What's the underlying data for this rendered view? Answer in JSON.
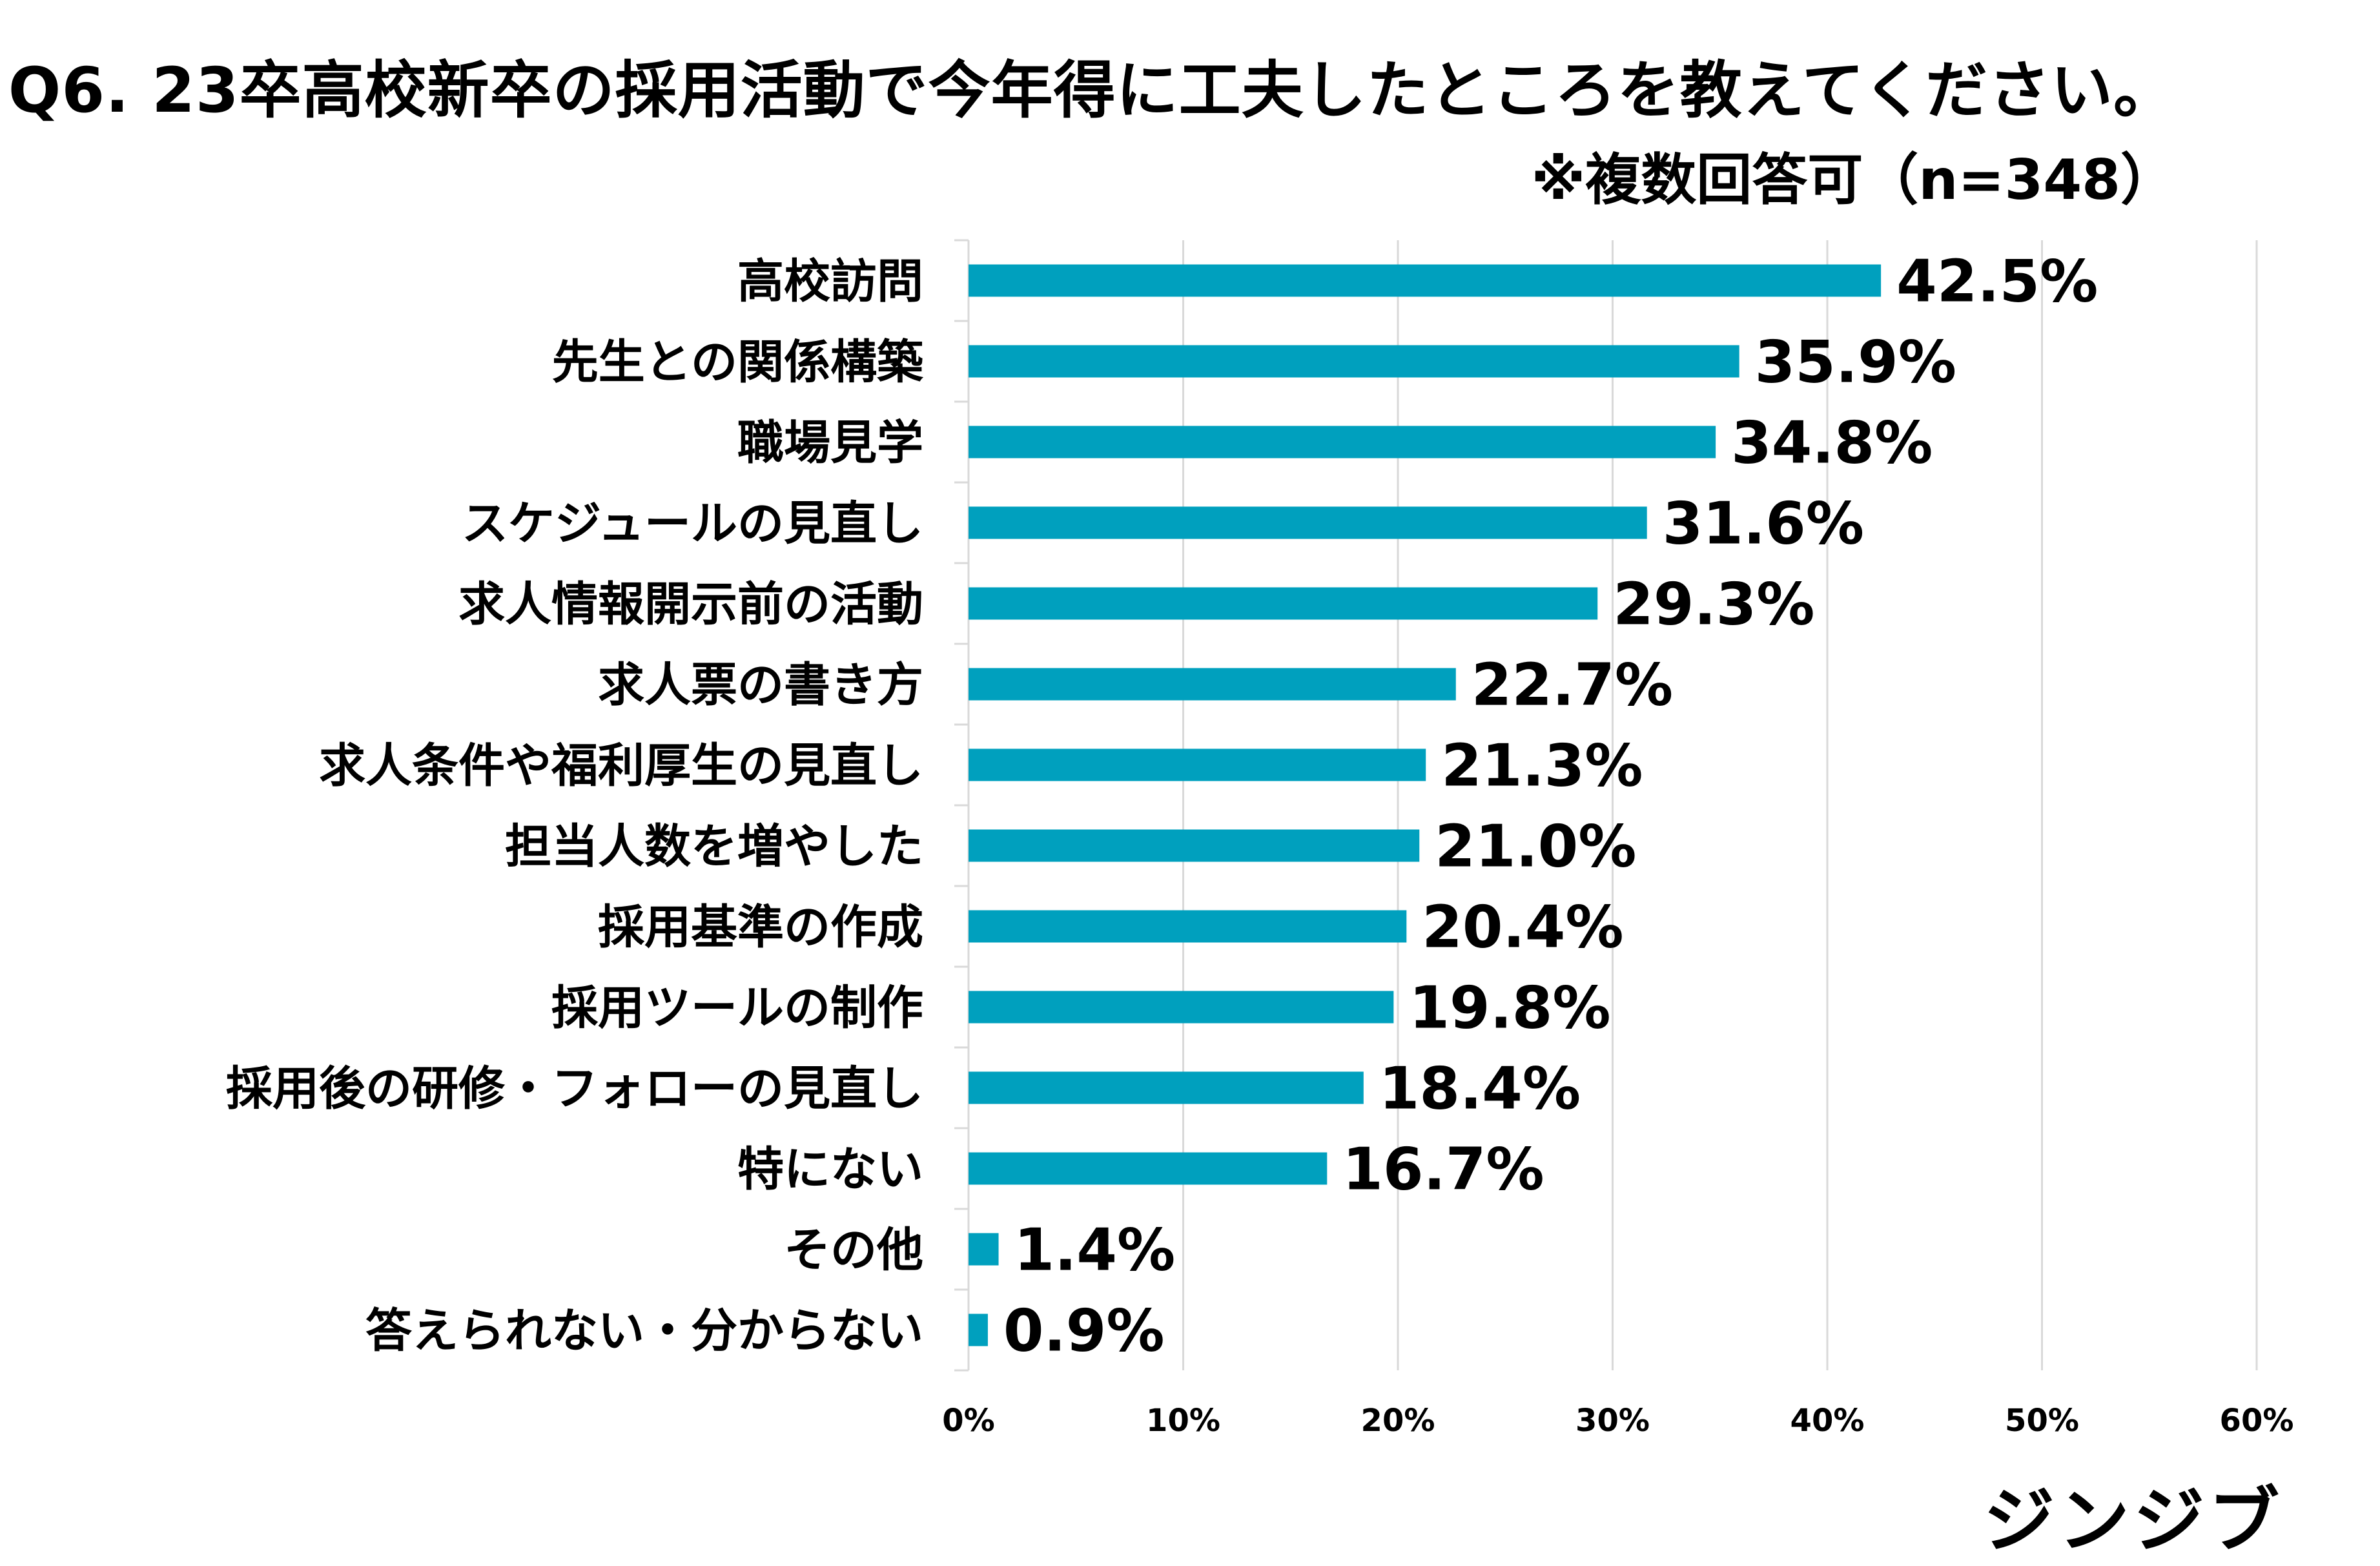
{
  "title": "Q6. 23卒高校新卒の採用活動で今年得に工夫したところを教えてください。",
  "subtitle": "※複数回答可（n=348）",
  "logo": "ジンジブ",
  "colors": {
    "bar": "#00A0BE",
    "grid": "#D9D9D9",
    "axis": "#D9D9D9"
  },
  "chart_data": {
    "type": "bar",
    "orientation": "horizontal",
    "categories": [
      "高校訪問",
      "先生との関係構築",
      "職場見学",
      "スケジュールの見直し",
      "求人情報開示前の活動",
      "求人票の書き方",
      "求人条件や福利厚生の見直し",
      "担当人数を増やした",
      "採用基準の作成",
      "採用ツールの制作",
      "採用後の研修・フォローの見直し",
      "特にない",
      "その他",
      "答えられない・分からない"
    ],
    "values": [
      42.5,
      35.9,
      34.8,
      31.6,
      29.3,
      22.7,
      21.3,
      21.0,
      20.4,
      19.8,
      18.4,
      16.7,
      1.4,
      0.9
    ],
    "value_labels": [
      "42.5%",
      "35.9%",
      "34.8%",
      "31.6%",
      "29.3%",
      "22.7%",
      "21.3%",
      "21.0%",
      "20.4%",
      "19.8%",
      "18.4%",
      "16.7%",
      "1.4%",
      "0.9%"
    ],
    "title": "Q6. 23卒高校新卒の採用活動で今年得に工夫したところを教えてください。",
    "xlabel": "",
    "ylabel": "",
    "xlim": [
      0,
      60
    ],
    "xticks": [
      0,
      10,
      20,
      30,
      40,
      50,
      60
    ],
    "xtick_labels": [
      "0%",
      "10%",
      "20%",
      "30%",
      "40%",
      "50%",
      "60%"
    ],
    "grid": true,
    "legend": "none"
  }
}
